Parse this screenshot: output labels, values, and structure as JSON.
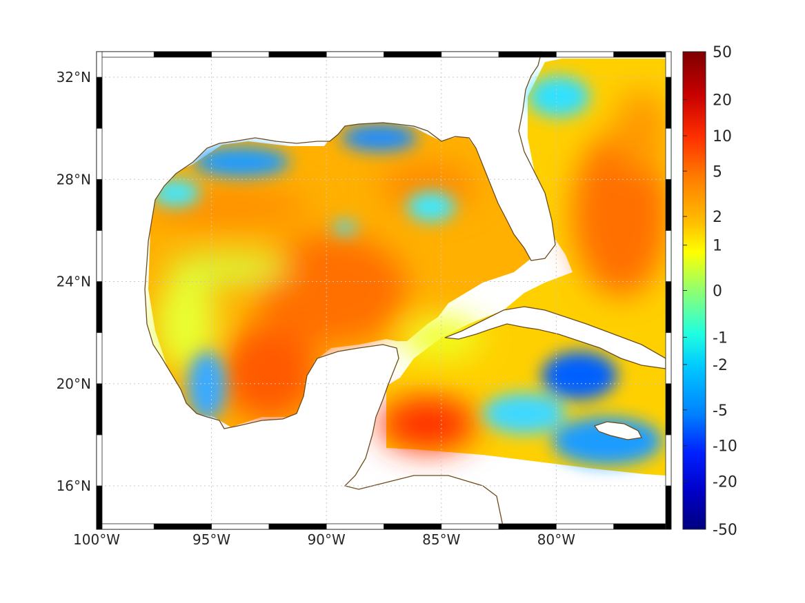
{
  "map": {
    "type": "gridded-field",
    "region": "Gulf of Mexico / Caribbean",
    "lon_range": [
      -100,
      -75
    ],
    "lat_range": [
      14.3,
      33
    ],
    "x_ticks": [
      {
        "value": -100,
        "label": "100°W"
      },
      {
        "value": -95,
        "label": "95°W"
      },
      {
        "value": -90,
        "label": "90°W"
      },
      {
        "value": -85,
        "label": "85°W"
      },
      {
        "value": -80,
        "label": "80°W"
      }
    ],
    "y_ticks": [
      {
        "value": 32,
        "label": "32°N"
      },
      {
        "value": 28,
        "label": "28°N"
      },
      {
        "value": 24,
        "label": "24°N"
      },
      {
        "value": 20,
        "label": "20°N"
      },
      {
        "value": 16,
        "label": "16°N"
      }
    ],
    "grid": true,
    "coast_color": "#6b4a1a",
    "hot_spots": [
      {
        "lon": -92.5,
        "lat": 20.5,
        "value": 10
      },
      {
        "lon": -86,
        "lat": 18.3,
        "value": 12
      },
      {
        "lon": -89.5,
        "lat": 23.5,
        "value": 8
      },
      {
        "lon": -77,
        "lat": 27,
        "value": 8
      }
    ],
    "cold_spots": [
      {
        "lon": -94,
        "lat": 28.7,
        "value": -5
      },
      {
        "lon": -89.5,
        "lat": 29.8,
        "value": -5
      },
      {
        "lon": -84,
        "lat": 26.8,
        "value": -1
      },
      {
        "lon": -79,
        "lat": 20.2,
        "value": -6
      },
      {
        "lon": -95,
        "lat": 19.5,
        "value": -3
      },
      {
        "lon": -89.5,
        "lat": 26.2,
        "value": -1
      }
    ]
  },
  "colorbar": {
    "labels": [
      "50",
      "20",
      "10",
      "5",
      "2",
      "1",
      "0",
      "-1",
      "-2",
      "-5",
      "-10",
      "-20",
      "-50"
    ],
    "colors": [
      "#7f0000",
      "#c80000",
      "#ff3000",
      "#ff7a00",
      "#ffc000",
      "#ffff00",
      "#90ff70",
      "#20ffe0",
      "#00c8ff",
      "#0080ff",
      "#0020ff",
      "#0000c8",
      "#00007f"
    ]
  }
}
